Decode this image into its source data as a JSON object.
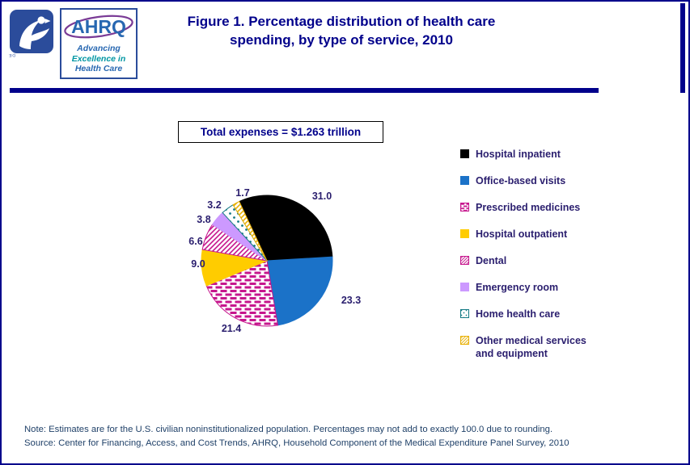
{
  "header": {
    "hhs_seal_text": "DEPARTMENT OF HEALTH & HUMAN SERVICES • USA",
    "ahrq_logo": {
      "acronym": "AHRQ",
      "tagline_line1": "Advancing",
      "tagline_line2": "Excellence in",
      "tagline_line3": "Health Care"
    },
    "title_line1": "Figure 1. Percentage distribution of health care",
    "title_line2": "spending, by type of service, 2010"
  },
  "total_box": {
    "label": "Total expenses = $1.263 trillion"
  },
  "chart_data": {
    "type": "pie",
    "title": "Figure 1. Percentage distribution of health care spending, by type of service, 2010",
    "annotation": "Total expenses = $1.263 trillion",
    "unit": "percent of total spending",
    "legend_position": "right",
    "start_angle_deg": -25,
    "categories": [
      "Hospital inpatient",
      "Office-based visits",
      "Prescribed medicines",
      "Hospital outpatient",
      "Dental",
      "Emergency room",
      "Home health care",
      "Other medical services and equipment"
    ],
    "values": [
      31.0,
      23.3,
      21.4,
      9.0,
      6.6,
      3.8,
      3.2,
      1.7
    ],
    "styles": [
      {
        "type": "solid",
        "color": "#000000"
      },
      {
        "type": "solid",
        "color": "#1B72C8"
      },
      {
        "type": "pattern-brick",
        "color": "#C6168D"
      },
      {
        "type": "solid",
        "color": "#FFCC00"
      },
      {
        "type": "pattern-diagonal",
        "color": "#C6168D"
      },
      {
        "type": "solid",
        "color": "#CC99FF"
      },
      {
        "type": "pattern-dots",
        "color": "#147A85"
      },
      {
        "type": "pattern-diagonal",
        "color": "#E8B004"
      }
    ]
  },
  "colors": {
    "page_border": "#00008B",
    "title_text": "#00008B",
    "label_text": "#2A1E6E",
    "footer_text": "#1F4068"
  },
  "footer": {
    "note": "Note: Estimates are for the U.S. civilian noninstitutionalized population. Percentages may not add to exactly 100.0 due to rounding.",
    "source": "Source: Center for Financing, Access, and Cost Trends, AHRQ, Household Component of the Medical Expenditure Panel Survey, 2010"
  }
}
